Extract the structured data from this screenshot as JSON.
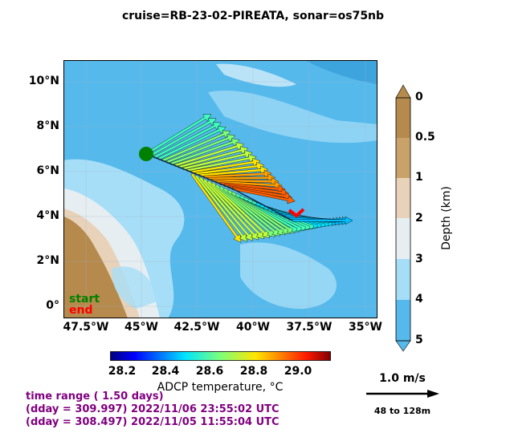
{
  "title": "cruise=RB-23-02-PIREATA,   sonar=os75nb",
  "map": {
    "lat_ticks": [
      "10°N",
      "8°N",
      "6°N",
      "4°N",
      "2°N",
      "0°"
    ],
    "lon_ticks": [
      "47.5°W",
      "45°W",
      "42.5°W",
      "40°W",
      "37.5°W",
      "35°W"
    ],
    "start_label": "start",
    "end_label": "end",
    "start_color": "#008000",
    "end_color": "#ff0000",
    "ocean_color": "#56b9ec"
  },
  "depth_colorbar": {
    "label": "Depth (km)",
    "ticks": [
      "0",
      "0.5",
      "1",
      "2",
      "3",
      "4",
      "5"
    ],
    "colors": [
      "#b58a4c",
      "#c9a26a",
      "#e8d2b9",
      "#e7eef2",
      "#a6def8",
      "#56b9ec"
    ]
  },
  "temp_colorbar": {
    "label": "ADCP temperature, °C",
    "ticks": [
      "28.2",
      "28.4",
      "28.6",
      "28.8",
      "29.0"
    ]
  },
  "time_info": {
    "range": "time range ( 1.50 days)",
    "end": "(dday = 309.997) 2022/11/06 23:55:02 UTC",
    "start": "(dday = 308.497) 2022/11/05 11:55:04 UTC"
  },
  "scale": {
    "speed": "1.0 m/s",
    "depth_range": "48 to 128m"
  }
}
